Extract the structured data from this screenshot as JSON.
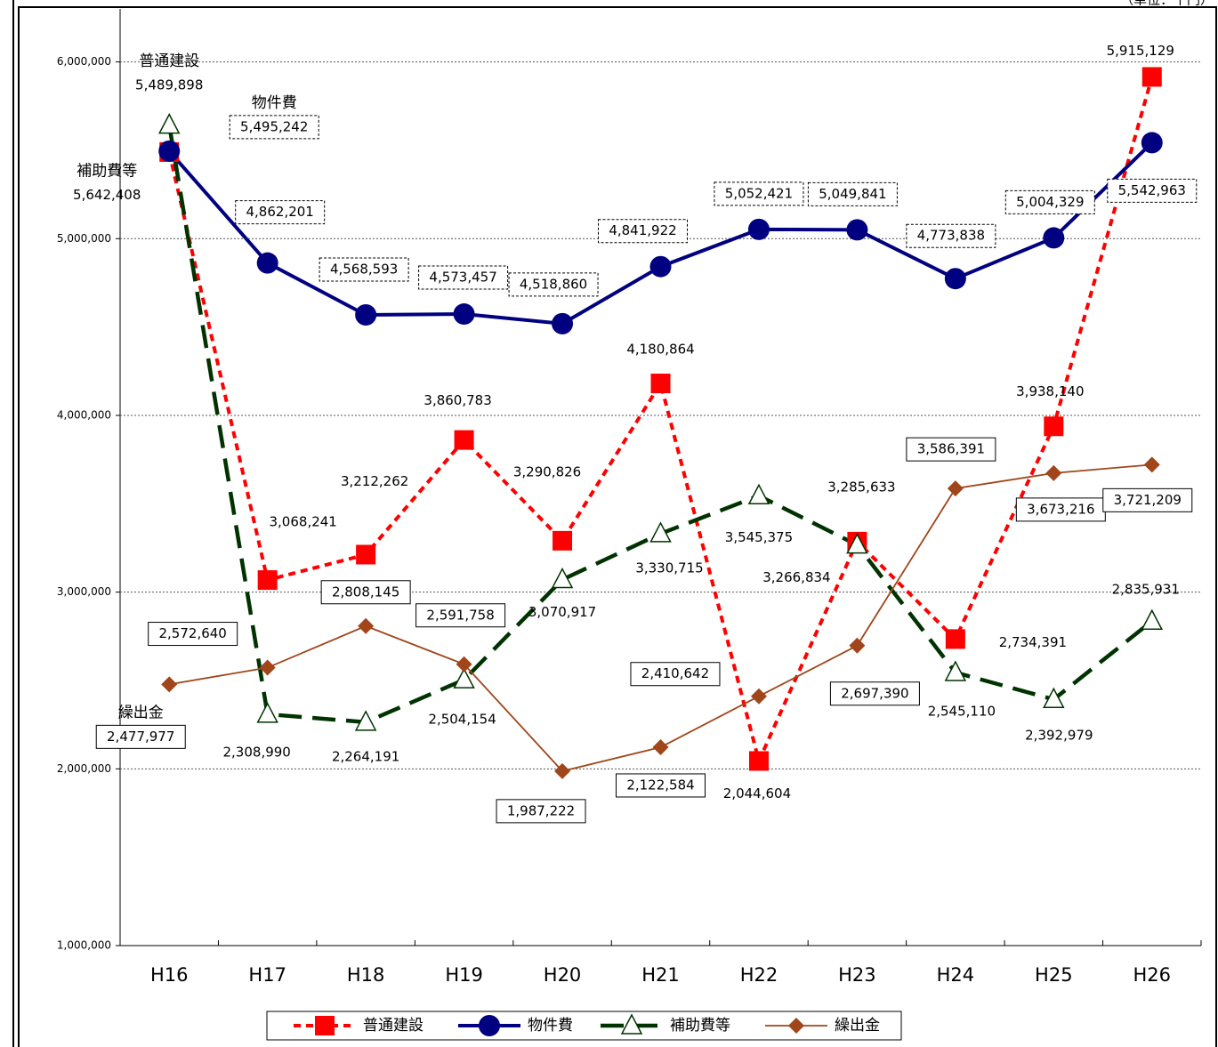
{
  "chart_data": {
    "type": "line",
    "unit": "（単位：千円）",
    "categories": [
      "H16",
      "H17",
      "H18",
      "H19",
      "H20",
      "H21",
      "H22",
      "H23",
      "H24",
      "H25",
      "H26"
    ],
    "series": [
      {
        "name": "普通建設",
        "color": "#ff0000",
        "values": [
          5489898,
          3068241,
          3212262,
          3860783,
          3290826,
          4180864,
          2044604,
          3285633,
          2734391,
          3938140,
          5915129
        ],
        "value_labels": [
          "5,489,898",
          "3,068,241",
          "3,212,262",
          "3,860,783",
          "3,290,826",
          "4,180,864",
          "2,044,604",
          "3,285,633",
          "2,734,391",
          "3,938,140",
          "5,915,129"
        ]
      },
      {
        "name": "物件費",
        "color": "#000080",
        "values": [
          5495242,
          4862201,
          4568593,
          4573457,
          4518860,
          4841922,
          5052421,
          5049841,
          4773838,
          5004329,
          5542963
        ],
        "value_labels": [
          "5,495,242",
          "4,862,201",
          "4,568,593",
          "4,573,457",
          "4,518,860",
          "4,841,922",
          "5,052,421",
          "5,049,841",
          "4,773,838",
          "5,004,329",
          "5,542,963"
        ]
      },
      {
        "name": "補助費等",
        "color": "#003300",
        "values": [
          5642408,
          2308990,
          2264191,
          2504154,
          3070917,
          3330715,
          3545375,
          3266834,
          2545110,
          2392979,
          2835931
        ],
        "value_labels": [
          "5,642,408",
          "2,308,990",
          "2,264,191",
          "2,504,154",
          "3,070,917",
          "3,330,715",
          "3,545,375",
          "3,266,834",
          "2,545,110",
          "2,392,979",
          "2,835,931"
        ]
      },
      {
        "name": "繰出金",
        "color": "#a0461a",
        "values": [
          2477977,
          2572640,
          2808145,
          2591758,
          1987222,
          2122584,
          2410642,
          2697390,
          3586391,
          3673216,
          3721209
        ],
        "value_labels": [
          "2,477,977",
          "2,572,640",
          "2,808,145",
          "2,591,758",
          "1,987,222",
          "2,122,584",
          "2,410,642",
          "2,697,390",
          "3,586,391",
          "3,673,216",
          "3,721,209"
        ]
      }
    ],
    "ylim": [
      1000000,
      6300000
    ],
    "yticks": [
      {
        "value": 1000000,
        "label": "1,000,000"
      },
      {
        "value": 2000000,
        "label": "2,000,000"
      },
      {
        "value": 3000000,
        "label": "3,000,000"
      },
      {
        "value": 4000000,
        "label": "4,000,000"
      },
      {
        "value": 5000000,
        "label": "5,000,000"
      },
      {
        "value": 6000000,
        "label": "6,000,000"
      }
    ],
    "grid": true
  }
}
